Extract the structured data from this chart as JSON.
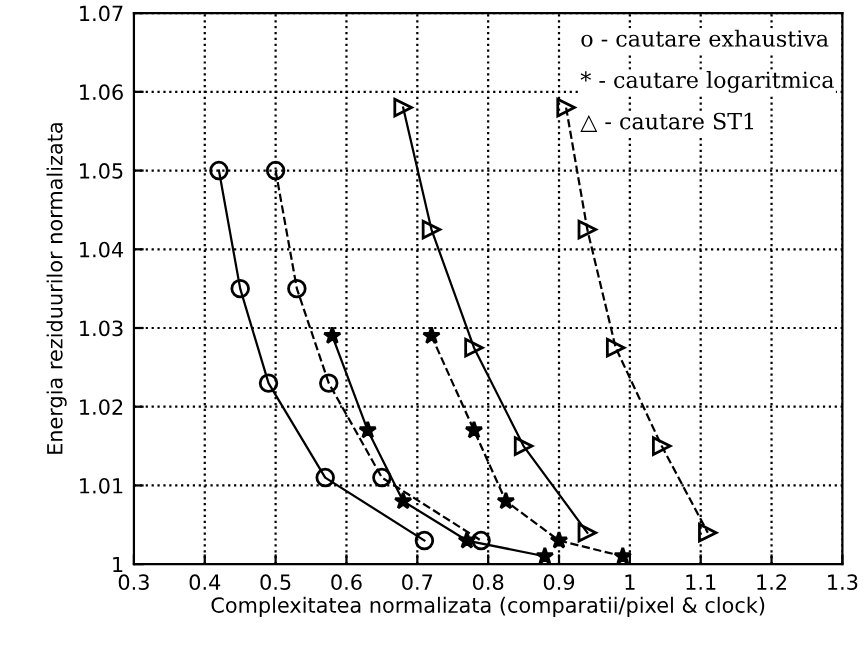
{
  "chart_data": {
    "type": "line",
    "xlabel": "Complexitatea normalizata (comparatii/pixel & clock)",
    "ylabel": "Energia reziduurilor normalizata",
    "xlim": [
      0.3,
      1.3
    ],
    "xticks": [
      0.3,
      0.4,
      0.5,
      0.6,
      0.7,
      0.8,
      0.9,
      1,
      1.1,
      1.2,
      1.3
    ],
    "ylim": [
      1,
      1.07
    ],
    "yticks": [
      1,
      1.01,
      1.02,
      1.03,
      1.04,
      1.05,
      1.06,
      1.07
    ],
    "grid": true,
    "series": [
      {
        "color": "#000000",
        "marker": "circle",
        "line_style": "solid",
        "x": [
          0.42,
          0.45,
          0.49,
          0.57,
          0.71
        ],
        "values": [
          1.05,
          1.035,
          1.023,
          1.011,
          1.003
        ]
      },
      {
        "color": "#000000",
        "marker": "circle",
        "line_style": "dashed",
        "x": [
          0.5,
          0.53,
          0.575,
          0.65,
          0.79
        ],
        "values": [
          1.05,
          1.035,
          1.023,
          1.011,
          1.003
        ]
      },
      {
        "color": "#000000",
        "marker": "star",
        "line_style": "solid",
        "x": [
          0.58,
          0.63,
          0.68,
          0.77,
          0.88
        ],
        "values": [
          1.029,
          1.017,
          1.008,
          1.003,
          1.001
        ]
      },
      {
        "color": "#000000",
        "marker": "star",
        "line_style": "dashed",
        "x": [
          0.72,
          0.78,
          0.825,
          0.9,
          0.99
        ],
        "values": [
          1.029,
          1.017,
          1.008,
          1.003,
          1.001
        ]
      },
      {
        "color": "#000000",
        "marker": "triangle",
        "line_style": "solid",
        "x": [
          0.68,
          0.72,
          0.78,
          0.85,
          0.94
        ],
        "values": [
          1.058,
          1.0425,
          1.0275,
          1.015,
          1.004
        ]
      },
      {
        "color": "#000000",
        "marker": "triangle",
        "line_style": "dashed",
        "x": [
          0.91,
          0.94,
          0.98,
          1.045,
          1.11
        ],
        "values": [
          1.058,
          1.0425,
          1.0275,
          1.015,
          1.004
        ]
      }
    ],
    "annotations": [
      "o - cautare exhaustiva",
      "* - cautare logaritmica",
      "△ - cautare ST1"
    ]
  }
}
